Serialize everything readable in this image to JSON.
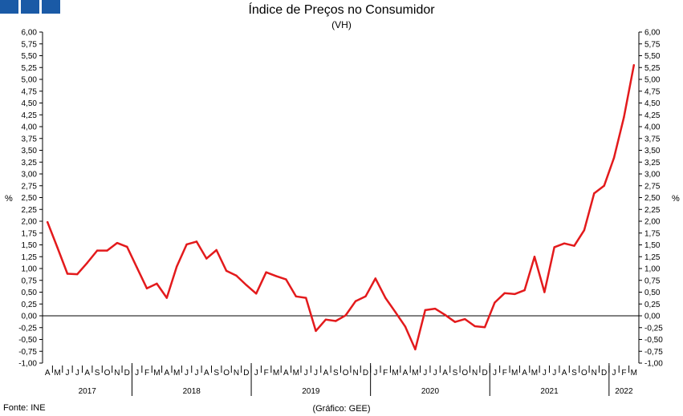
{
  "header": {
    "title": "Índice de Preços no Consumidor",
    "subtitle": "(VH)"
  },
  "footer": {
    "source": "Fonte: INE",
    "credit": "(Gráfico: GEE)"
  },
  "colors": {
    "series": "#e31a1c",
    "logo": "#1a5aa6",
    "axis": "#000000"
  },
  "chart_data": {
    "type": "line",
    "title": "Índice de Preços no Consumidor",
    "subtitle": "(VH)",
    "ylabel_left": "%",
    "ylabel_right": "%",
    "ylim": [
      -1.0,
      6.0
    ],
    "ytick_step": 0.25,
    "grid": false,
    "years": [
      {
        "label": "2017",
        "months": 9
      },
      {
        "label": "2018",
        "months": 12
      },
      {
        "label": "2019",
        "months": 12
      },
      {
        "label": "2020",
        "months": 12
      },
      {
        "label": "2021",
        "months": 12
      },
      {
        "label": "2022",
        "months": 3
      }
    ],
    "x": [
      "A",
      "M",
      "J",
      "J",
      "A",
      "S",
      "O",
      "N",
      "D",
      "J",
      "F",
      "M",
      "A",
      "M",
      "J",
      "J",
      "A",
      "S",
      "O",
      "N",
      "D",
      "J",
      "F",
      "M",
      "A",
      "M",
      "J",
      "J",
      "A",
      "S",
      "O",
      "N",
      "D",
      "J",
      "F",
      "M",
      "A",
      "M",
      "J",
      "J",
      "A",
      "S",
      "O",
      "N",
      "D",
      "J",
      "F",
      "M",
      "A",
      "M",
      "J",
      "J",
      "A",
      "S",
      "O",
      "N",
      "D",
      "J",
      "F",
      "M"
    ],
    "series": [
      {
        "values": [
          1.98,
          1.44,
          0.89,
          0.88,
          1.12,
          1.38,
          1.38,
          1.54,
          1.46,
          1.02,
          0.58,
          0.68,
          0.38,
          1.04,
          1.51,
          1.57,
          1.21,
          1.39,
          0.95,
          0.85,
          0.65,
          0.47,
          0.92,
          0.84,
          0.77,
          0.41,
          0.38,
          -0.32,
          -0.08,
          -0.11,
          0.01,
          0.31,
          0.41,
          0.79,
          0.38,
          0.08,
          -0.23,
          -0.71,
          0.12,
          0.15,
          0.02,
          -0.13,
          -0.07,
          -0.22,
          -0.24,
          0.28,
          0.48,
          0.46,
          0.54,
          1.25,
          0.5,
          1.45,
          1.53,
          1.48,
          1.81,
          2.59,
          2.75,
          3.34,
          4.2,
          5.3
        ]
      }
    ]
  }
}
